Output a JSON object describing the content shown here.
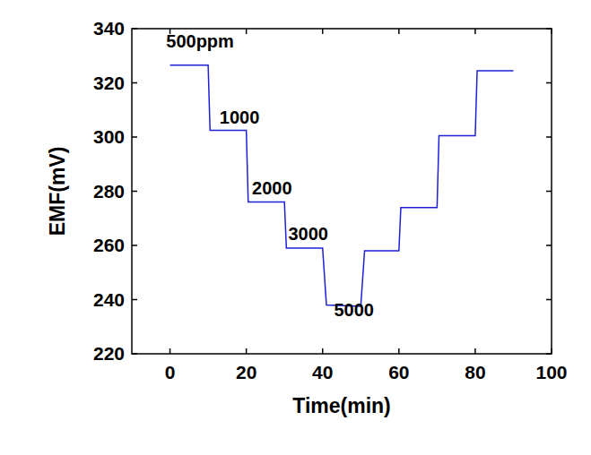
{
  "chart_data": {
    "type": "line",
    "x_label": "Time(min)",
    "y_label": "EMF(mV)",
    "x": [
      0,
      10,
      10.5,
      20,
      20.5,
      30,
      30.5,
      40,
      41,
      50,
      51,
      60,
      60.5,
      70,
      70.5,
      80,
      80.5,
      90
    ],
    "values": [
      326.5,
      326.5,
      302.5,
      302.5,
      276,
      276,
      259,
      259,
      238,
      237.5,
      258,
      258,
      274,
      274,
      300.5,
      300.5,
      324.5,
      324.5
    ],
    "color": "#1f1fd6",
    "xlim": [
      -10,
      100
    ],
    "ylim": [
      220,
      340
    ],
    "xticks": [
      0,
      20,
      40,
      60,
      80,
      100
    ],
    "yticks": [
      220,
      240,
      260,
      280,
      300,
      320,
      340
    ],
    "grid": false,
    "annotations": [
      {
        "text": "500ppm",
        "x": -1,
        "y": 333
      },
      {
        "text": "1000",
        "x": 13,
        "y": 305
      },
      {
        "text": "2000",
        "x": 21.5,
        "y": 279
      },
      {
        "text": "3000",
        "x": 31,
        "y": 262
      },
      {
        "text": "5000",
        "x": 43,
        "y": 234
      }
    ]
  }
}
